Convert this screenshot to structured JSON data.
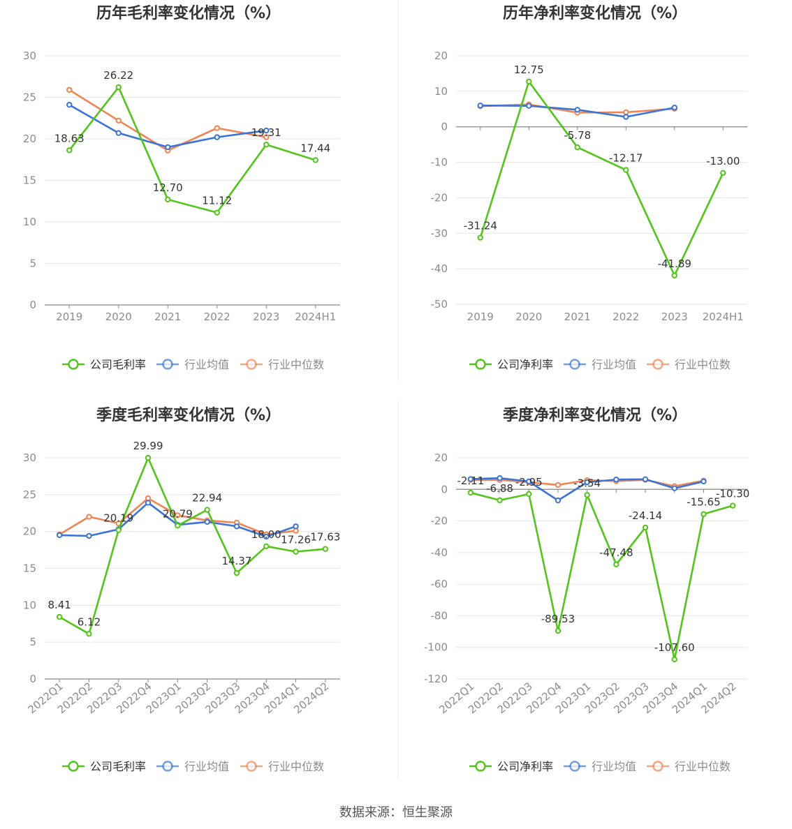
{
  "colors": {
    "company": "#52c41a",
    "avg": "#3b74d9",
    "median": "#f08452",
    "grid": "#e6e6e6",
    "axis": "#888888",
    "text": "#333333",
    "tick": "#8c8c8c"
  },
  "footer": "数据来源：恒生聚源",
  "chart_data": [
    {
      "type": "line",
      "title": "历年毛利率变化情况（%）",
      "categories": [
        "2019",
        "2020",
        "2021",
        "2022",
        "2023",
        "2024H1"
      ],
      "ylim": [
        0,
        30
      ],
      "yticks": [
        0,
        5,
        10,
        15,
        20,
        25,
        30
      ],
      "series": [
        {
          "name": "公司毛利率",
          "role": "company",
          "values": [
            18.63,
            26.22,
            12.7,
            11.12,
            19.31,
            17.44
          ],
          "labels": [
            "18.63",
            "26.22",
            "12.70",
            "11.12",
            "19.31",
            "17.44"
          ]
        },
        {
          "name": "行业均值",
          "role": "avg",
          "values": [
            24.1,
            20.7,
            19.0,
            20.2,
            21.0,
            null
          ]
        },
        {
          "name": "行业中位数",
          "role": "median",
          "values": [
            25.9,
            22.2,
            18.6,
            21.3,
            20.2,
            null
          ]
        }
      ],
      "legend": "bottom"
    },
    {
      "type": "line",
      "title": "历年净利率变化情况（%）",
      "categories": [
        "2019",
        "2020",
        "2021",
        "2022",
        "2023",
        "2024H1"
      ],
      "ylim": [
        -50,
        20
      ],
      "yticks": [
        -50,
        -40,
        -30,
        -20,
        -10,
        0,
        10,
        20
      ],
      "series": [
        {
          "name": "公司净利率",
          "role": "company",
          "values": [
            -31.24,
            12.75,
            -5.78,
            -12.17,
            -41.89,
            -13.0
          ],
          "labels": [
            "-31.24",
            "12.75",
            "-5.78",
            "-12.17",
            "-41.89",
            "-13.00"
          ]
        },
        {
          "name": "行业均值",
          "role": "avg",
          "values": [
            6.0,
            5.9,
            4.8,
            2.8,
            5.4,
            null
          ]
        },
        {
          "name": "行业中位数",
          "role": "median",
          "values": [
            5.8,
            6.3,
            4.0,
            4.1,
            5.1,
            null
          ]
        }
      ],
      "legend": "bottom"
    },
    {
      "type": "line",
      "title": "季度毛利率变化情况（%）",
      "categories": [
        "2022Q1",
        "2022Q2",
        "2022Q3",
        "2022Q4",
        "2023Q1",
        "2023Q2",
        "2023Q3",
        "2023Q4",
        "2024Q1",
        "2024Q2"
      ],
      "ylim": [
        0,
        30
      ],
      "yticks": [
        0,
        5,
        10,
        15,
        20,
        25,
        30
      ],
      "series": [
        {
          "name": "公司毛利率",
          "role": "company",
          "values": [
            8.41,
            6.12,
            20.19,
            29.99,
            20.79,
            22.94,
            14.37,
            18.0,
            17.26,
            17.63
          ],
          "labels": [
            "8.41",
            "6.12",
            "20.19",
            "29.99",
            "20.79",
            "22.94",
            "14.37",
            "18.00",
            "17.26",
            "17.63"
          ]
        },
        {
          "name": "行业均值",
          "role": "avg",
          "values": [
            19.5,
            19.4,
            20.3,
            23.9,
            20.9,
            21.3,
            20.7,
            19.3,
            20.7,
            null
          ]
        },
        {
          "name": "行业中位数",
          "role": "median",
          "values": [
            19.6,
            22.0,
            21.1,
            24.5,
            22.2,
            21.5,
            21.2,
            19.6,
            20.1,
            null
          ]
        }
      ],
      "legend": "bottom"
    },
    {
      "type": "line",
      "title": "季度净利率变化情况（%）",
      "categories": [
        "2022Q1",
        "2022Q2",
        "2022Q3",
        "2022Q4",
        "2023Q1",
        "2023Q2",
        "2023Q3",
        "2023Q4",
        "2024Q1",
        "2024Q2"
      ],
      "ylim": [
        -120,
        20
      ],
      "yticks": [
        -120,
        -100,
        -80,
        -60,
        -40,
        -20,
        0,
        20
      ],
      "series": [
        {
          "name": "公司净利率",
          "role": "company",
          "values": [
            -2.11,
            -6.88,
            -2.95,
            -89.53,
            -3.54,
            -47.48,
            -24.14,
            -107.6,
            -15.65,
            -10.3
          ],
          "labels": [
            "-2.11",
            "-6.88",
            "-2.95",
            "-89.53",
            "-3.54",
            "-47.48",
            "-24.14",
            "-107.60",
            "-15.65",
            "-10.30"
          ]
        },
        {
          "name": "行业均值",
          "role": "avg",
          "values": [
            6.5,
            7.1,
            5.0,
            -7.0,
            4.5,
            6.2,
            6.4,
            0.7,
            5.0,
            null
          ]
        },
        {
          "name": "行业中位数",
          "role": "median",
          "values": [
            6.0,
            6.0,
            4.5,
            2.8,
            5.8,
            5.2,
            6.0,
            2.0,
            5.5,
            null
          ]
        }
      ],
      "legend": "bottom"
    }
  ]
}
